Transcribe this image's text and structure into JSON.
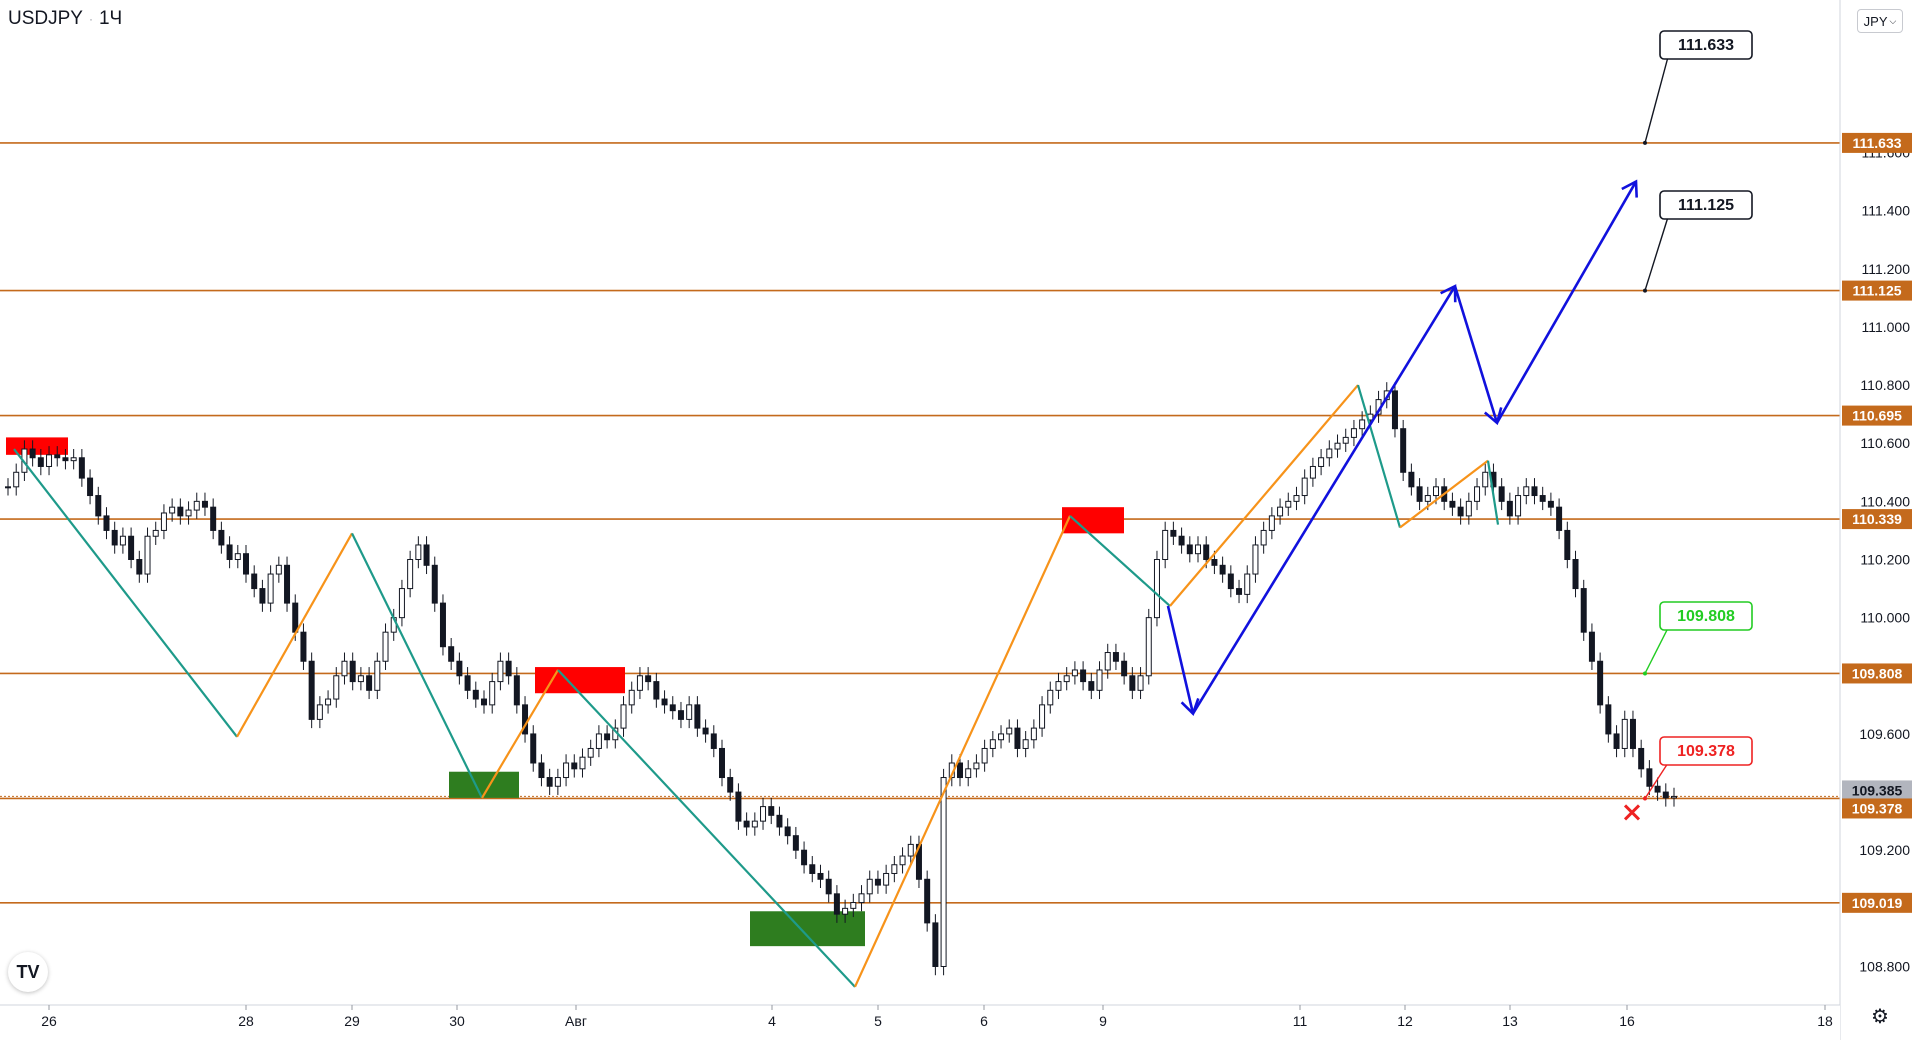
{
  "header": {
    "symbol": "USDJPY",
    "separator": "·",
    "interval": "1Ч"
  },
  "currency_button": {
    "label": "JPY",
    "icon": "chevron-down-icon"
  },
  "logo": {
    "text": "TV"
  },
  "settings": {
    "icon": "gear-icon"
  },
  "colors": {
    "level_line": "#c46a1c",
    "level_label_bg": "#c46a1c",
    "up_candle": "#131722",
    "down_candle": "#131722",
    "wave_up": "#f7931a",
    "wave_down": "#1e9a8a",
    "forecast_arrow": "#1111dd",
    "supply_zone": "#ff0000",
    "demand_zone": "#2e7d1f",
    "target_green": "#22cc22",
    "target_red": "#ee2222"
  },
  "chart_data": {
    "type": "candlestick",
    "symbol": "USDJPY",
    "interval": "1Ч",
    "ylim": [
      108.7,
      112.2
    ],
    "x_ticks": [
      "26",
      "28",
      "29",
      "30",
      "Авг",
      "4",
      "5",
      "6",
      "9",
      "11",
      "12",
      "13",
      "16",
      "18"
    ],
    "y_ticks": [
      "108.800",
      "109.200",
      "109.600",
      "110.000",
      "110.200",
      "110.400",
      "110.600",
      "110.800",
      "111.000",
      "111.200",
      "111.400",
      "111.600"
    ],
    "levels": [
      {
        "value": 111.633,
        "label": "111.633"
      },
      {
        "value": 111.125,
        "label": "111.125"
      },
      {
        "value": 110.695,
        "label": "110.695"
      },
      {
        "value": 110.339,
        "label": "110.339"
      },
      {
        "value": 109.808,
        "label": "109.808"
      },
      {
        "value": 109.385,
        "label": "109.385",
        "current": true
      },
      {
        "value": 109.378,
        "label": "109.378"
      },
      {
        "value": 109.019,
        "label": "109.019"
      }
    ],
    "callouts": [
      {
        "text": "111.633",
        "style": "black",
        "value": 111.633
      },
      {
        "text": "111.125",
        "style": "black",
        "value": 111.125
      },
      {
        "text": "109.808",
        "style": "green",
        "value": 109.808
      },
      {
        "text": "109.378",
        "style": "red",
        "value": 109.378
      }
    ],
    "close_series": [
      110.45,
      110.5,
      110.58,
      110.55,
      110.52,
      110.56,
      110.55,
      110.54,
      110.55,
      110.48,
      110.42,
      110.35,
      110.3,
      110.25,
      110.28,
      110.2,
      110.15,
      110.28,
      110.3,
      110.36,
      110.38,
      110.35,
      110.37,
      110.4,
      110.38,
      110.3,
      110.25,
      110.2,
      110.22,
      110.15,
      110.1,
      110.05,
      110.15,
      110.18,
      110.05,
      109.95,
      109.85,
      109.65,
      109.7,
      109.72,
      109.8,
      109.85,
      109.78,
      109.8,
      109.75,
      109.85,
      109.95,
      110.0,
      110.1,
      110.2,
      110.25,
      110.18,
      110.05,
      109.9,
      109.85,
      109.8,
      109.75,
      109.72,
      109.7,
      109.78,
      109.85,
      109.8,
      109.7,
      109.6,
      109.5,
      109.45,
      109.42,
      109.45,
      109.5,
      109.48,
      109.52,
      109.55,
      109.6,
      109.58,
      109.62,
      109.7,
      109.75,
      109.8,
      109.78,
      109.72,
      109.7,
      109.68,
      109.65,
      109.7,
      109.62,
      109.6,
      109.55,
      109.45,
      109.4,
      109.3,
      109.28,
      109.3,
      109.35,
      109.32,
      109.28,
      109.25,
      109.2,
      109.15,
      109.12,
      109.1,
      109.05,
      108.98,
      109.0,
      109.02,
      109.05,
      109.1,
      109.08,
      109.12,
      109.15,
      109.18,
      109.22,
      109.1,
      108.95,
      108.8,
      109.45,
      109.5,
      109.45,
      109.48,
      109.5,
      109.55,
      109.58,
      109.6,
      109.62,
      109.55,
      109.58,
      109.62,
      109.7,
      109.75,
      109.78,
      109.8,
      109.82,
      109.78,
      109.75,
      109.82,
      109.88,
      109.85,
      109.8,
      109.75,
      109.8,
      110.0,
      110.2,
      110.3,
      110.28,
      110.25,
      110.22,
      110.25,
      110.2,
      110.18,
      110.15,
      110.1,
      110.08,
      110.15,
      110.25,
      110.3,
      110.35,
      110.38,
      110.4,
      110.42,
      110.48,
      110.52,
      110.55,
      110.58,
      110.6,
      110.62,
      110.65,
      110.68,
      110.7,
      110.75,
      110.78,
      110.65,
      110.5,
      110.45,
      110.4,
      110.42,
      110.45,
      110.4,
      110.38,
      110.35,
      110.4,
      110.45,
      110.5,
      110.45,
      110.4,
      110.35,
      110.42,
      110.45,
      110.42,
      110.4,
      110.38,
      110.3,
      110.2,
      110.1,
      109.95,
      109.85,
      109.7,
      109.6,
      109.55,
      109.65,
      109.55,
      109.48,
      109.42,
      109.4,
      109.38,
      109.385
    ]
  }
}
